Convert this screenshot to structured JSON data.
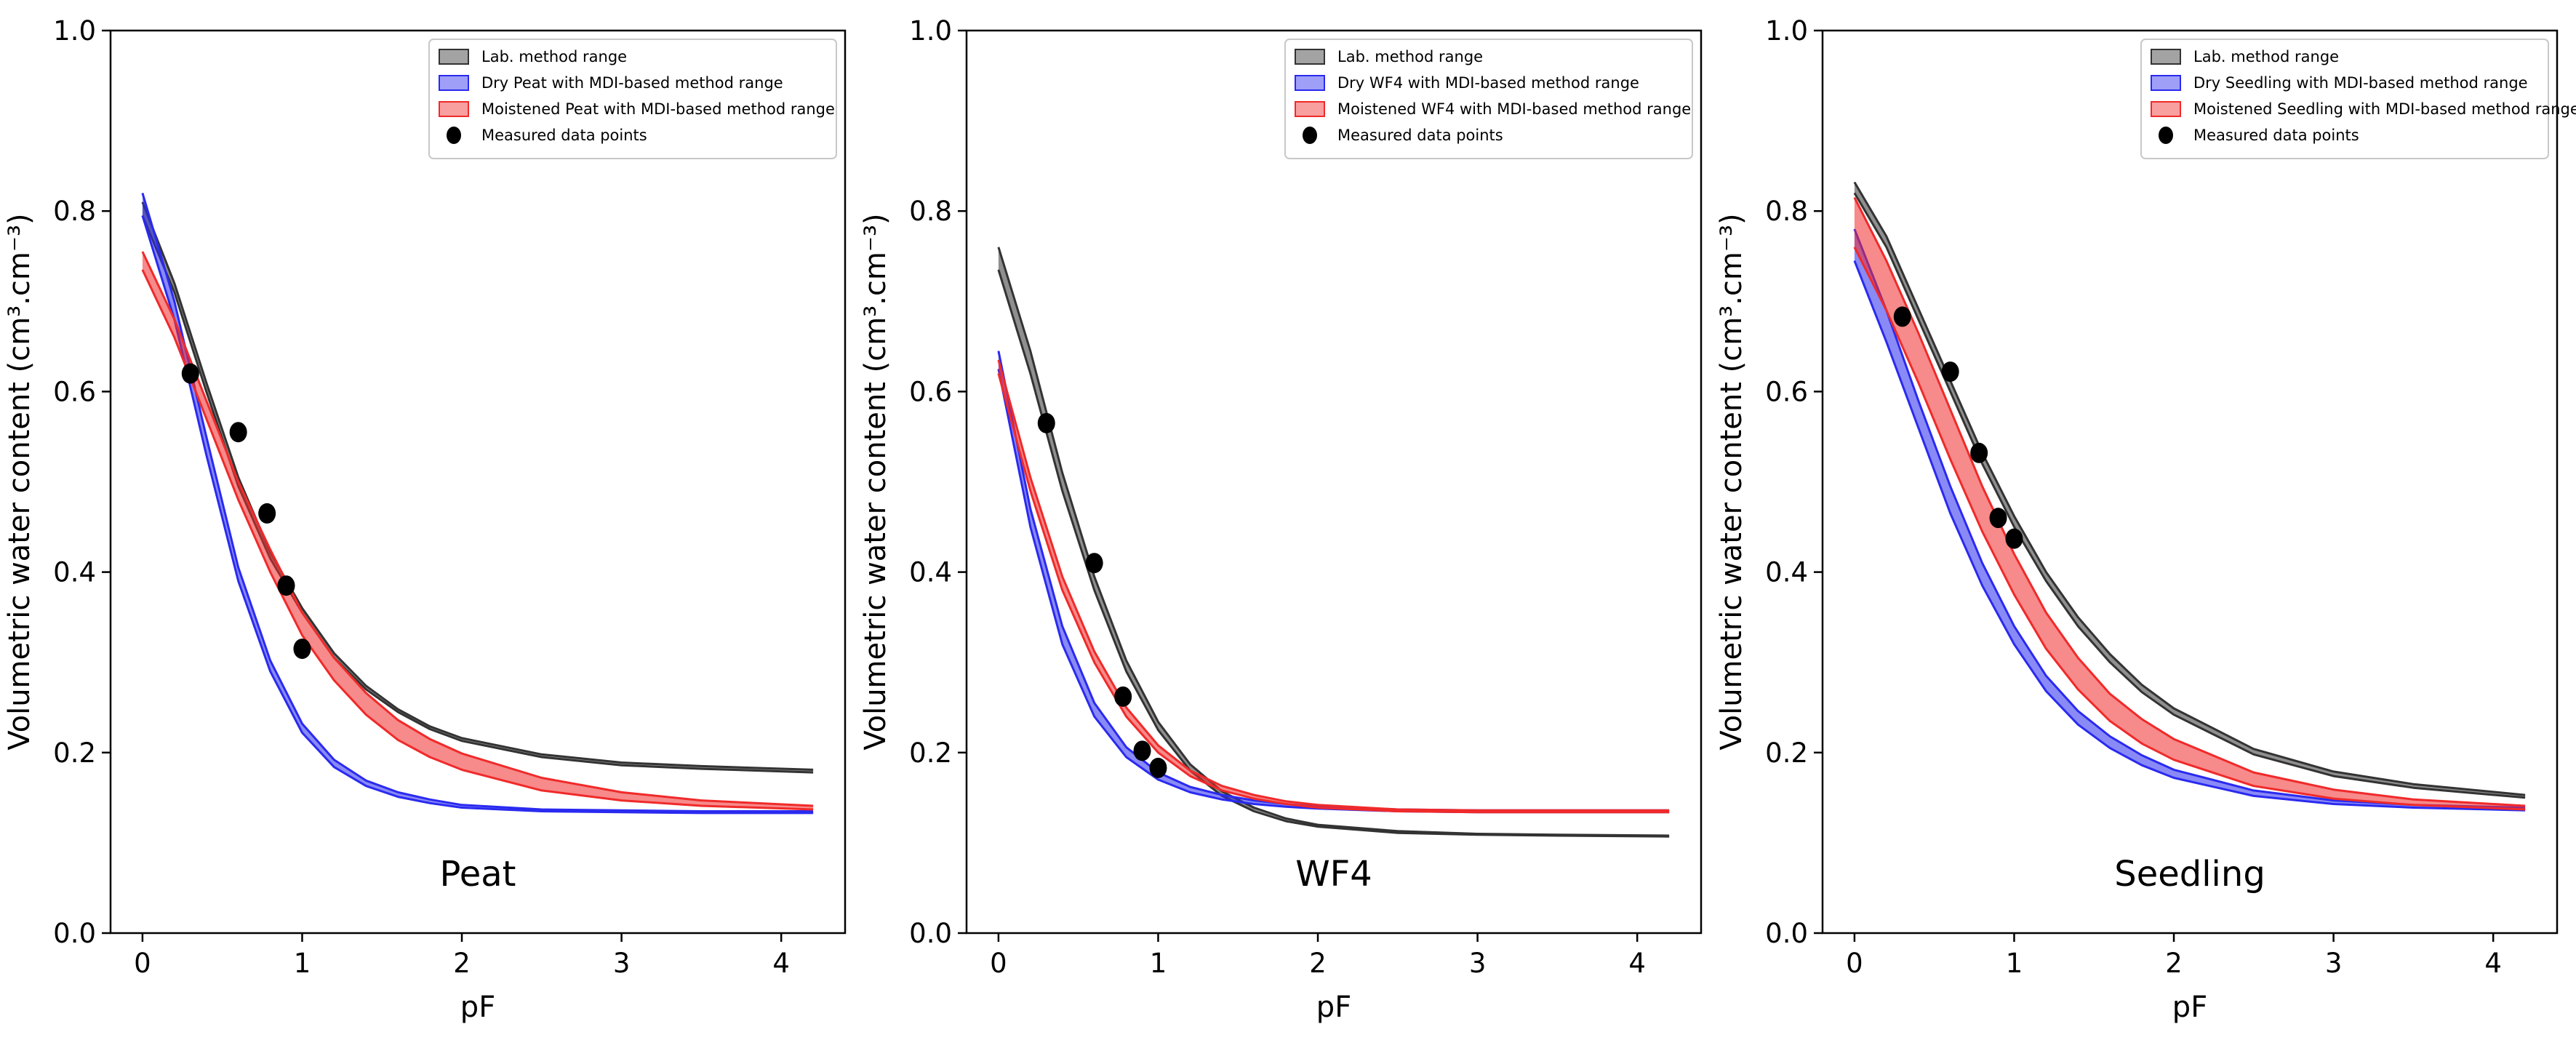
{
  "colors": {
    "lab": "#333333",
    "dry": "#2a2af0",
    "moist": "#f02a2a",
    "points": "#000000"
  },
  "chart_data": [
    {
      "type": "line",
      "panel_label": "Peat",
      "xlabel": "pF",
      "ylabel": "Volumetric water content (cm³.cm⁻³)",
      "xlim": [
        -0.2,
        4.4
      ],
      "ylim": [
        0.0,
        1.0
      ],
      "xticks": [
        0,
        1,
        2,
        3,
        4
      ],
      "yticks": [
        0.0,
        0.2,
        0.4,
        0.6,
        0.8,
        1.0
      ],
      "legend": [
        {
          "key": "lab",
          "label": "Lab. method range"
        },
        {
          "key": "dry",
          "label": "Dry Peat with MDI-based method range"
        },
        {
          "key": "moist",
          "label": "Moistened Peat with MDI-based method range"
        },
        {
          "key": "points",
          "label": "Measured data points"
        }
      ],
      "legend_position": "top-right",
      "x": [
        0,
        0.2,
        0.4,
        0.6,
        0.8,
        1.0,
        1.2,
        1.4,
        1.6,
        1.8,
        2.0,
        2.5,
        3.0,
        3.5,
        4.2
      ],
      "series": [
        {
          "name": "Lab. method range",
          "key": "lab",
          "lower": [
            0.795,
            0.71,
            0.6,
            0.495,
            0.415,
            0.355,
            0.305,
            0.27,
            0.245,
            0.226,
            0.213,
            0.195,
            0.186,
            0.182,
            0.178
          ],
          "upper": [
            0.81,
            0.72,
            0.61,
            0.505,
            0.422,
            0.36,
            0.31,
            0.274,
            0.248,
            0.229,
            0.216,
            0.198,
            0.189,
            0.185,
            0.181
          ]
        },
        {
          "name": "Dry Peat with MDI-based method range",
          "key": "dry",
          "lower": [
            0.795,
            0.68,
            0.53,
            0.39,
            0.29,
            0.222,
            0.184,
            0.163,
            0.151,
            0.144,
            0.139,
            0.135,
            0.134,
            0.133,
            0.133
          ],
          "upper": [
            0.82,
            0.7,
            0.55,
            0.405,
            0.302,
            0.232,
            0.192,
            0.169,
            0.156,
            0.148,
            0.142,
            0.137,
            0.136,
            0.135,
            0.135
          ]
        },
        {
          "name": "Moistened Peat with MDI-based method range",
          "key": "moist",
          "lower": [
            0.735,
            0.66,
            0.57,
            0.48,
            0.4,
            0.33,
            0.28,
            0.242,
            0.214,
            0.195,
            0.181,
            0.158,
            0.147,
            0.141,
            0.137
          ],
          "upper": [
            0.755,
            0.68,
            0.59,
            0.5,
            0.425,
            0.355,
            0.305,
            0.266,
            0.236,
            0.215,
            0.199,
            0.172,
            0.156,
            0.147,
            0.141
          ]
        }
      ],
      "points": {
        "x": [
          0.3,
          0.6,
          0.78,
          0.9,
          1.0
        ],
        "y": [
          0.62,
          0.555,
          0.465,
          0.385,
          0.315
        ]
      }
    },
    {
      "type": "line",
      "panel_label": "WF4",
      "xlabel": "pF",
      "ylabel": "Volumetric water content (cm³.cm⁻³)",
      "xlim": [
        -0.2,
        4.4
      ],
      "ylim": [
        0.0,
        1.0
      ],
      "xticks": [
        0,
        1,
        2,
        3,
        4
      ],
      "yticks": [
        0.0,
        0.2,
        0.4,
        0.6,
        0.8,
        1.0
      ],
      "legend": [
        {
          "key": "lab",
          "label": "Lab. method range"
        },
        {
          "key": "dry",
          "label": "Dry WF4 with MDI-based method range"
        },
        {
          "key": "moist",
          "label": "Moistened WF4 with MDI-based method range"
        },
        {
          "key": "points",
          "label": "Measured data points"
        }
      ],
      "legend_position": "top-right",
      "x": [
        0,
        0.2,
        0.4,
        0.6,
        0.8,
        1.0,
        1.2,
        1.4,
        1.6,
        1.8,
        2.0,
        2.5,
        3.0,
        3.5,
        4.2
      ],
      "series": [
        {
          "name": "Lab. method range",
          "key": "lab",
          "lower": [
            0.735,
            0.62,
            0.49,
            0.38,
            0.29,
            0.225,
            0.18,
            0.152,
            0.135,
            0.124,
            0.118,
            0.111,
            0.109,
            0.108,
            0.107
          ],
          "upper": [
            0.76,
            0.645,
            0.51,
            0.395,
            0.302,
            0.234,
            0.187,
            0.157,
            0.139,
            0.127,
            0.12,
            0.113,
            0.11,
            0.109,
            0.108
          ]
        },
        {
          "name": "Dry WF4 with MDI-based method range",
          "key": "dry",
          "lower": [
            0.625,
            0.45,
            0.32,
            0.24,
            0.195,
            0.17,
            0.156,
            0.148,
            0.143,
            0.14,
            0.138,
            0.135,
            0.134,
            0.134,
            0.134
          ],
          "upper": [
            0.645,
            0.47,
            0.34,
            0.255,
            0.206,
            0.178,
            0.162,
            0.153,
            0.147,
            0.143,
            0.14,
            0.137,
            0.136,
            0.136,
            0.136
          ]
        },
        {
          "name": "Moistened WF4 with MDI-based method range",
          "key": "moist",
          "lower": [
            0.62,
            0.49,
            0.38,
            0.3,
            0.24,
            0.2,
            0.174,
            0.158,
            0.149,
            0.143,
            0.139,
            0.135,
            0.134,
            0.134,
            0.134
          ],
          "upper": [
            0.635,
            0.505,
            0.395,
            0.312,
            0.25,
            0.208,
            0.18,
            0.163,
            0.153,
            0.146,
            0.142,
            0.137,
            0.136,
            0.136,
            0.136
          ]
        }
      ],
      "points": {
        "x": [
          0.3,
          0.6,
          0.78,
          0.9,
          1.0
        ],
        "y": [
          0.565,
          0.41,
          0.262,
          0.202,
          0.183
        ]
      }
    },
    {
      "type": "line",
      "panel_label": "Seedling",
      "xlabel": "pF",
      "ylabel": "Volumetric water content (cm³.cm⁻³)",
      "xlim": [
        -0.2,
        4.4
      ],
      "ylim": [
        0.0,
        1.0
      ],
      "xticks": [
        0,
        1,
        2,
        3,
        4
      ],
      "yticks": [
        0.0,
        0.2,
        0.4,
        0.6,
        0.8,
        1.0
      ],
      "legend": [
        {
          "key": "lab",
          "label": "Lab. method range"
        },
        {
          "key": "dry",
          "label": "Dry Seedling with MDI-based method range"
        },
        {
          "key": "moist",
          "label": "Moistened Seedling with MDI-based method range"
        },
        {
          "key": "points",
          "label": "Measured data points"
        }
      ],
      "legend_position": "top-right",
      "x": [
        0,
        0.2,
        0.4,
        0.6,
        0.8,
        1.0,
        1.2,
        1.4,
        1.6,
        1.8,
        2.0,
        2.5,
        3.0,
        3.5,
        4.2
      ],
      "series": [
        {
          "name": "Lab. method range",
          "key": "lab",
          "lower": [
            0.82,
            0.76,
            0.68,
            0.6,
            0.52,
            0.45,
            0.39,
            0.34,
            0.3,
            0.267,
            0.242,
            0.198,
            0.174,
            0.161,
            0.15
          ],
          "upper": [
            0.832,
            0.772,
            0.692,
            0.612,
            0.532,
            0.462,
            0.4,
            0.35,
            0.309,
            0.275,
            0.249,
            0.204,
            0.179,
            0.165,
            0.153
          ]
        },
        {
          "name": "Dry Seedling with MDI-based method range",
          "key": "dry",
          "lower": [
            0.745,
            0.655,
            0.56,
            0.465,
            0.385,
            0.32,
            0.268,
            0.231,
            0.205,
            0.186,
            0.172,
            0.152,
            0.143,
            0.139,
            0.136
          ],
          "upper": [
            0.78,
            0.69,
            0.59,
            0.495,
            0.41,
            0.34,
            0.285,
            0.246,
            0.218,
            0.197,
            0.181,
            0.158,
            0.147,
            0.142,
            0.139
          ]
        },
        {
          "name": "Moistened Seedling with MDI-based method range",
          "key": "moist",
          "lower": [
            0.76,
            0.69,
            0.61,
            0.525,
            0.445,
            0.375,
            0.315,
            0.27,
            0.235,
            0.21,
            0.192,
            0.163,
            0.149,
            0.142,
            0.137
          ],
          "upper": [
            0.815,
            0.745,
            0.665,
            0.58,
            0.495,
            0.42,
            0.355,
            0.305,
            0.265,
            0.237,
            0.215,
            0.178,
            0.159,
            0.148,
            0.141
          ]
        }
      ],
      "points": {
        "x": [
          0.3,
          0.6,
          0.78,
          0.9,
          1.0
        ],
        "y": [
          0.683,
          0.622,
          0.532,
          0.46,
          0.437
        ]
      }
    }
  ]
}
